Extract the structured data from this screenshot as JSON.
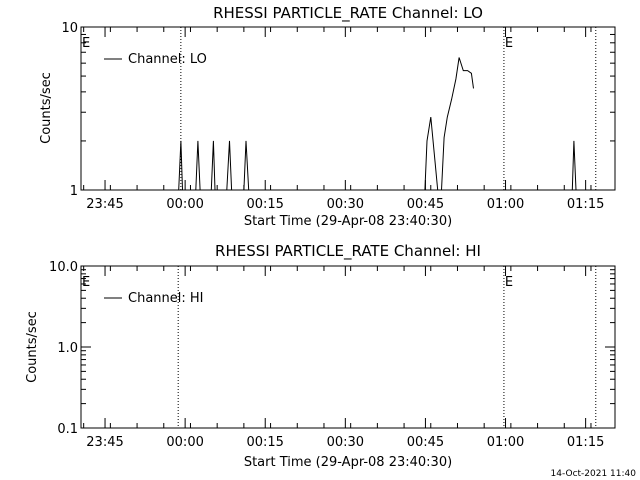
{
  "start_time_label": "Start Time (29-Apr-08 23:40:30)",
  "timestamp": "14-Oct-2021 11:40",
  "panels": [
    {
      "title": "RHESSI PARTICLE_RATE Channel: LO",
      "ylabel": "Counts/sec",
      "legend": "Channel: LO",
      "y_ticks": [
        "1",
        "10"
      ],
      "event_marks": [
        "E",
        "E"
      ]
    },
    {
      "title": "RHESSI PARTICLE_RATE Channel: HI",
      "ylabel": "Counts/sec",
      "legend": "Channel: HI",
      "y_ticks": [
        "0.1",
        "1.0",
        "10.0"
      ],
      "event_marks": [
        "E",
        "E"
      ]
    }
  ],
  "x_ticks": [
    "23:45",
    "00:00",
    "00:15",
    "00:30",
    "00:45",
    "01:00",
    "01:15"
  ],
  "chart_data": [
    {
      "type": "line",
      "title": "RHESSI PARTICLE_RATE Channel: LO",
      "xlabel": "Start Time (29-Apr-08 23:40:30)",
      "ylabel": "Counts/sec",
      "y_scale": "log",
      "ylim": [
        1,
        10
      ],
      "x_range_minutes": [
        0,
        100
      ],
      "x_tick_minutes": [
        4.5,
        19.5,
        34.5,
        49.5,
        64.5,
        79.5,
        94.5
      ],
      "x_tick_labels": [
        "23:45",
        "00:00",
        "00:15",
        "00:30",
        "00:45",
        "01:00",
        "01:15"
      ],
      "vertical_lines_minutes": [
        18.7,
        79.2,
        96.4
      ],
      "event_marks_minutes": [
        0,
        79.2
      ],
      "legend_position": "top-left",
      "series": [
        {
          "name": "Channel: LO",
          "segments": [
            [
              [
                18.3,
                1
              ],
              [
                18.7,
                2
              ],
              [
                19.0,
                1
              ]
            ],
            [
              [
                21.5,
                1
              ],
              [
                21.9,
                2
              ],
              [
                22.3,
                1
              ]
            ],
            [
              [
                24.4,
                1
              ],
              [
                24.8,
                2
              ],
              [
                25.1,
                1
              ]
            ],
            [
              [
                27.3,
                1
              ],
              [
                27.8,
                2
              ],
              [
                28.2,
                1
              ]
            ],
            [
              [
                30.5,
                1
              ],
              [
                30.9,
                2
              ],
              [
                31.4,
                1
              ]
            ],
            [
              [
                64.4,
                1
              ],
              [
                64.8,
                2
              ],
              [
                65.5,
                2.8
              ],
              [
                66.3,
                1.5
              ],
              [
                66.8,
                1
              ]
            ],
            [
              [
                67.5,
                1
              ],
              [
                68.0,
                2.1
              ],
              [
                68.6,
                2.8
              ],
              [
                69.4,
                3.6
              ],
              [
                70.2,
                4.8
              ],
              [
                70.8,
                6.5
              ],
              [
                71.6,
                5.4
              ],
              [
                72.4,
                5.4
              ],
              [
                73.1,
                5.2
              ],
              [
                73.5,
                4.2
              ]
            ],
            [
              [
                92.0,
                1
              ],
              [
                92.3,
                2
              ],
              [
                92.7,
                1
              ]
            ]
          ]
        }
      ]
    },
    {
      "type": "line",
      "title": "RHESSI PARTICLE_RATE Channel: HI",
      "xlabel": "Start Time (29-Apr-08 23:40:30)",
      "ylabel": "Counts/sec",
      "y_scale": "log",
      "ylim": [
        0.1,
        10
      ],
      "x_range_minutes": [
        0,
        100
      ],
      "x_tick_minutes": [
        4.5,
        19.5,
        34.5,
        49.5,
        64.5,
        79.5,
        94.5
      ],
      "x_tick_labels": [
        "23:45",
        "00:00",
        "00:15",
        "00:30",
        "00:45",
        "01:00",
        "01:15"
      ],
      "vertical_lines_minutes": [
        18.2,
        79.2,
        96.4
      ],
      "event_marks_minutes": [
        0,
        79.2
      ],
      "legend_position": "top-left",
      "series": [
        {
          "name": "Channel: HI",
          "segments": []
        }
      ]
    }
  ]
}
